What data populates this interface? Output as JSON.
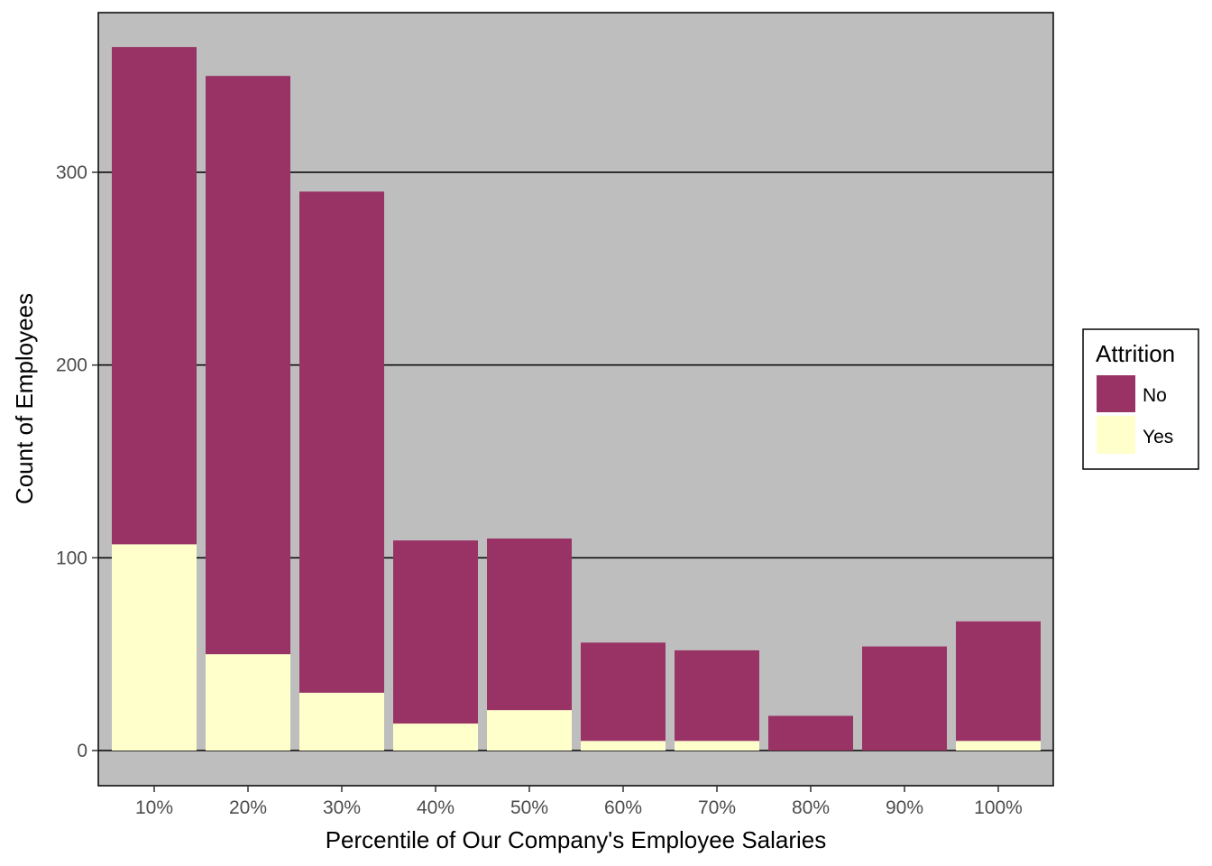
{
  "chart_data": {
    "type": "bar",
    "stacked": true,
    "categories": [
      "10%",
      "20%",
      "30%",
      "40%",
      "50%",
      "60%",
      "70%",
      "80%",
      "90%",
      "100%"
    ],
    "series": [
      {
        "name": "No",
        "color": "#993366",
        "values": [
          258,
          300,
          260,
          95,
          89,
          51,
          47,
          18,
          54,
          62
        ]
      },
      {
        "name": "Yes",
        "color": "#ffffcc",
        "values": [
          107,
          50,
          30,
          14,
          21,
          5,
          5,
          0,
          0,
          5
        ]
      }
    ],
    "xlabel": "Percentile of Our Company's Employee Salaries",
    "ylabel": "Count of Employees",
    "yticks": [
      0,
      100,
      200,
      300
    ],
    "ylim": [
      -18,
      382
    ],
    "grid": "horizontal major lines",
    "panel_background": "#bebebe",
    "legend": {
      "title": "Attrition",
      "position": "right"
    }
  }
}
